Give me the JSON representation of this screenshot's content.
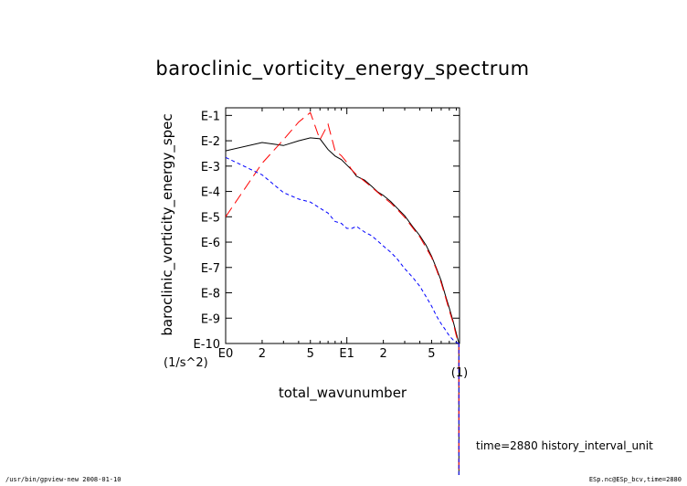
{
  "chart_data": {
    "type": "line",
    "title": "baroclinic_vorticity_energy_spectrum",
    "xlabel": "total_wavunumber",
    "xunit": "(1)",
    "ylabel": "baroclinic_vorticity_energy_spec",
    "yunit": "(1/s^2)",
    "xscale": "log",
    "yscale": "log",
    "xlim": [
      1,
      85
    ],
    "ylim": [
      1e-10,
      0.2
    ],
    "x_tick_labels": [
      "E0",
      "2",
      "5",
      "E1",
      "2",
      "5"
    ],
    "y_tick_labels": [
      "E-1",
      "E-2",
      "E-3",
      "E-4",
      "E-5",
      "E-6",
      "E-7",
      "E-8",
      "E-9",
      "E-10"
    ],
    "series": [
      {
        "color": "#000000",
        "dash": "solid",
        "x": [
          1,
          2,
          3,
          4,
          5,
          6,
          7,
          8,
          9,
          10,
          11,
          12,
          14,
          16,
          18,
          20,
          23,
          26,
          30,
          35,
          40,
          45,
          50,
          55,
          60,
          65,
          70,
          75,
          80,
          84
        ],
        "y": [
          0.004,
          0.0085,
          0.0065,
          0.01,
          0.013,
          0.012,
          0.0045,
          0.0025,
          0.0018,
          0.0011,
          0.0007,
          0.0004,
          0.00028,
          0.00016,
          9.5e-05,
          7e-05,
          4e-05,
          2.2e-05,
          1.1e-05,
          4e-06,
          1.8e-06,
          7.5e-07,
          2.8e-07,
          9e-08,
          3e-08,
          8e-09,
          2.5e-09,
          8e-10,
          2.5e-10,
          1e-10
        ]
      },
      {
        "color": "#ff0000",
        "dash": "long-dash",
        "x": [
          1,
          2,
          3,
          4,
          5,
          6,
          7,
          8,
          9,
          10,
          11,
          12,
          14,
          16,
          18,
          20,
          23,
          26,
          30,
          35,
          40,
          45,
          50,
          55,
          60,
          65,
          70,
          75,
          80,
          84
        ],
        "y": [
          1e-05,
          0.0013,
          0.011,
          0.055,
          0.13,
          0.011,
          0.045,
          0.004,
          0.0026,
          0.0014,
          0.0007,
          0.00045,
          0.00025,
          0.00015,
          9e-05,
          6e-05,
          3.5e-05,
          2e-05,
          9.5e-06,
          3.6e-06,
          1.6e-06,
          6e-07,
          2.5e-07,
          8e-08,
          2.5e-08,
          7e-09,
          2e-09,
          7e-10,
          2e-10,
          1e-10
        ]
      },
      {
        "color": "#0000ff",
        "dash": "short-dash",
        "x": [
          1,
          2,
          3,
          4,
          5,
          6,
          7,
          8,
          9,
          10,
          11,
          12,
          14,
          16,
          18,
          20,
          23,
          26,
          30,
          35,
          40,
          45,
          50,
          55,
          60,
          65,
          70,
          75,
          80,
          84
        ],
        "y": [
          0.0022,
          0.00045,
          9e-05,
          5e-05,
          3.8e-05,
          2.2e-05,
          1.4e-05,
          6.5e-06,
          5.5e-06,
          3.5e-06,
          3.5e-06,
          4.2e-06,
          2.5e-06,
          1.8e-06,
          1.1e-06,
          7e-07,
          4e-07,
          2.2e-07,
          9e-08,
          4e-08,
          1.8e-08,
          7e-09,
          3e-09,
          1.2e-09,
          6e-10,
          3.5e-10,
          2e-10,
          1.4e-10,
          1.1e-10,
          1e-10
        ]
      }
    ]
  },
  "annotation": "time=2880 history_interval_unit",
  "footer_left": "/usr/bin/gpview-new  2008-01-10",
  "footer_right": "ESp.nc@ESp_bcv,time=2880"
}
